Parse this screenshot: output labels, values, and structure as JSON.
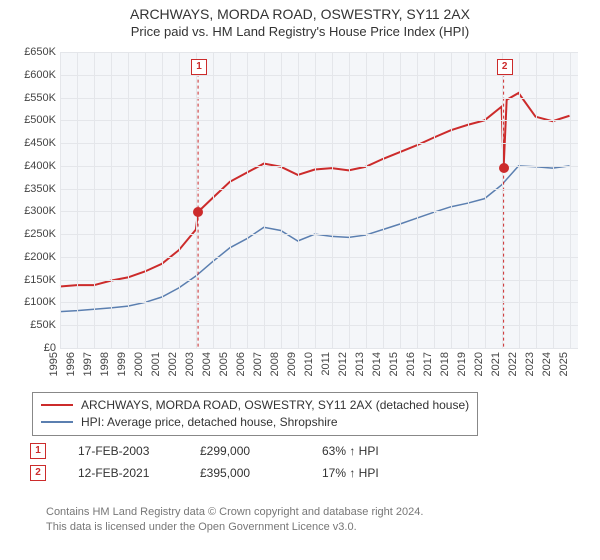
{
  "title": "ARCHWAYS, MORDA ROAD, OSWESTRY, SY11 2AX",
  "subtitle": "Price paid vs. HM Land Registry's House Price Index (HPI)",
  "chart": {
    "type": "line",
    "plot_bg": "#f4f6f9",
    "grid_color": "#e4e6ea",
    "axis_fontsize": 11,
    "ylim": [
      0,
      650000
    ],
    "ytick_step": 50000,
    "yticks": [
      "£0",
      "£50K",
      "£100K",
      "£150K",
      "£200K",
      "£250K",
      "£300K",
      "£350K",
      "£400K",
      "£450K",
      "£500K",
      "£550K",
      "£600K",
      "£650K"
    ],
    "xlim": [
      1995,
      2025.5
    ],
    "xticks": [
      1995,
      1996,
      1997,
      1998,
      1999,
      2000,
      2001,
      2002,
      2003,
      2004,
      2005,
      2006,
      2007,
      2008,
      2009,
      2010,
      2011,
      2012,
      2013,
      2014,
      2015,
      2016,
      2017,
      2018,
      2019,
      2020,
      2021,
      2022,
      2023,
      2024,
      2025
    ],
    "series": [
      {
        "name": "property",
        "label": "ARCHWAYS, MORDA ROAD, OSWESTRY, SY11 2AX (detached house)",
        "color": "#cc2b2b",
        "width": 2,
        "data": [
          [
            1995,
            135000
          ],
          [
            1996,
            138000
          ],
          [
            1997,
            138000
          ],
          [
            1998,
            148000
          ],
          [
            1999,
            155000
          ],
          [
            2000,
            168000
          ],
          [
            2001,
            185000
          ],
          [
            2002,
            215000
          ],
          [
            2003,
            260000
          ],
          [
            2003.13,
            299000
          ],
          [
            2004,
            330000
          ],
          [
            2005,
            365000
          ],
          [
            2006,
            385000
          ],
          [
            2007,
            405000
          ],
          [
            2008,
            398000
          ],
          [
            2009,
            380000
          ],
          [
            2010,
            392000
          ],
          [
            2011,
            395000
          ],
          [
            2012,
            390000
          ],
          [
            2013,
            398000
          ],
          [
            2014,
            415000
          ],
          [
            2015,
            430000
          ],
          [
            2016,
            445000
          ],
          [
            2017,
            462000
          ],
          [
            2018,
            478000
          ],
          [
            2019,
            490000
          ],
          [
            2020,
            500000
          ],
          [
            2021,
            530000
          ],
          [
            2021.12,
            395000
          ],
          [
            2021.3,
            545000
          ],
          [
            2022,
            560000
          ],
          [
            2023,
            508000
          ],
          [
            2024,
            498000
          ],
          [
            2025,
            510000
          ]
        ]
      },
      {
        "name": "hpi",
        "label": "HPI: Average price, detached house, Shropshire",
        "color": "#5b7fb0",
        "width": 1.5,
        "data": [
          [
            1995,
            80000
          ],
          [
            1996,
            82000
          ],
          [
            1997,
            85000
          ],
          [
            1998,
            88000
          ],
          [
            1999,
            92000
          ],
          [
            2000,
            100000
          ],
          [
            2001,
            112000
          ],
          [
            2002,
            132000
          ],
          [
            2003,
            158000
          ],
          [
            2004,
            190000
          ],
          [
            2005,
            220000
          ],
          [
            2006,
            240000
          ],
          [
            2007,
            265000
          ],
          [
            2008,
            258000
          ],
          [
            2009,
            235000
          ],
          [
            2010,
            250000
          ],
          [
            2011,
            245000
          ],
          [
            2012,
            243000
          ],
          [
            2013,
            248000
          ],
          [
            2014,
            260000
          ],
          [
            2015,
            272000
          ],
          [
            2016,
            285000
          ],
          [
            2017,
            298000
          ],
          [
            2018,
            310000
          ],
          [
            2019,
            318000
          ],
          [
            2020,
            328000
          ],
          [
            2021,
            358000
          ],
          [
            2022,
            400000
          ],
          [
            2023,
            398000
          ],
          [
            2024,
            395000
          ],
          [
            2025,
            400000
          ]
        ]
      }
    ],
    "markers": [
      {
        "id": "1",
        "x": 2003.13,
        "y": 620000,
        "label_y": 620000
      },
      {
        "id": "2",
        "x": 2021.12,
        "y": 620000,
        "label_y": 620000
      }
    ],
    "sale_points": [
      {
        "x": 2003.13,
        "y": 299000
      },
      {
        "x": 2021.12,
        "y": 395000
      }
    ]
  },
  "legend": {
    "rows": [
      {
        "color": "#cc2b2b",
        "label": "ARCHWAYS, MORDA ROAD, OSWESTRY, SY11 2AX (detached house)"
      },
      {
        "color": "#5b7fb0",
        "label": "HPI: Average price, detached house, Shropshire"
      }
    ]
  },
  "transactions": [
    {
      "id": "1",
      "date": "17-FEB-2003",
      "price": "£299,000",
      "vs_hpi": "63% ↑ HPI"
    },
    {
      "id": "2",
      "date": "12-FEB-2021",
      "price": "£395,000",
      "vs_hpi": "17% ↑ HPI"
    }
  ],
  "footnote_l1": "Contains HM Land Registry data © Crown copyright and database right 2024.",
  "footnote_l2": "This data is licensed under the Open Government Licence v3.0."
}
